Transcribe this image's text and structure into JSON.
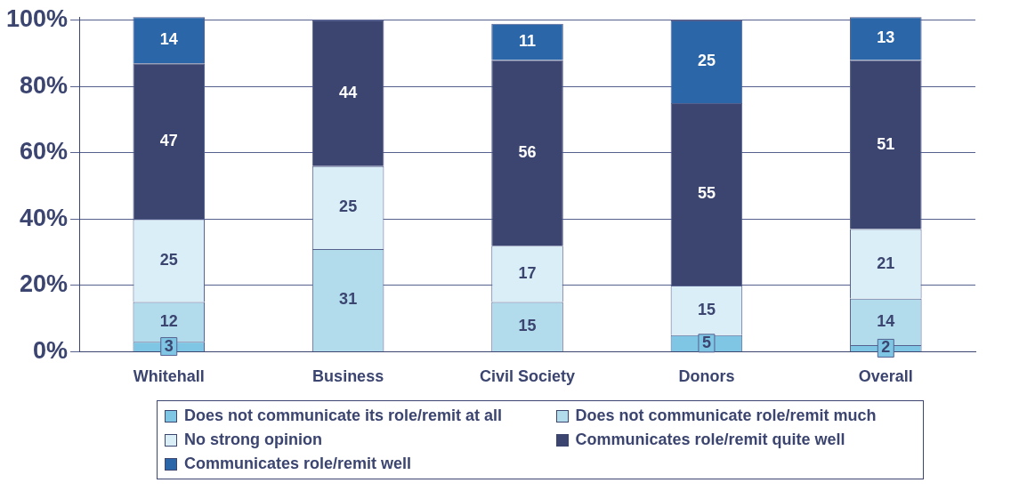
{
  "chart_data": {
    "type": "bar",
    "stacked": true,
    "categories": [
      "Whitehall",
      "Business",
      "Civil Society",
      "Donors",
      "Overall"
    ],
    "series": [
      {
        "name": "Does not communicate its role/remit at all",
        "color": "#7ec6e3",
        "values": [
          3,
          null,
          null,
          5,
          2
        ]
      },
      {
        "name": "Does not communicate role/remit much",
        "color": "#b2dcec",
        "values": [
          12,
          31,
          15,
          null,
          14
        ]
      },
      {
        "name": "No strong opinion",
        "color": "#d9eef6",
        "values": [
          25,
          25,
          17,
          15,
          21
        ]
      },
      {
        "name": "Communicates role/remit quite well",
        "color": "#3b4570",
        "values": [
          47,
          44,
          56,
          55,
          51
        ]
      },
      {
        "name": "Communicates role/remit well",
        "color": "#2a66a8",
        "values": [
          14,
          null,
          11,
          25,
          13
        ]
      }
    ],
    "ylim": [
      0,
      101
    ],
    "yticks": [
      {
        "value": 0,
        "label": "0%"
      },
      {
        "value": 20,
        "label": "20%"
      },
      {
        "value": 40,
        "label": "40%"
      },
      {
        "value": 60,
        "label": "60%"
      },
      {
        "value": 80,
        "label": "80%"
      },
      {
        "value": 100,
        "label": "100%"
      }
    ],
    "grid": "y",
    "legend": "bottom",
    "data_labels": true
  }
}
